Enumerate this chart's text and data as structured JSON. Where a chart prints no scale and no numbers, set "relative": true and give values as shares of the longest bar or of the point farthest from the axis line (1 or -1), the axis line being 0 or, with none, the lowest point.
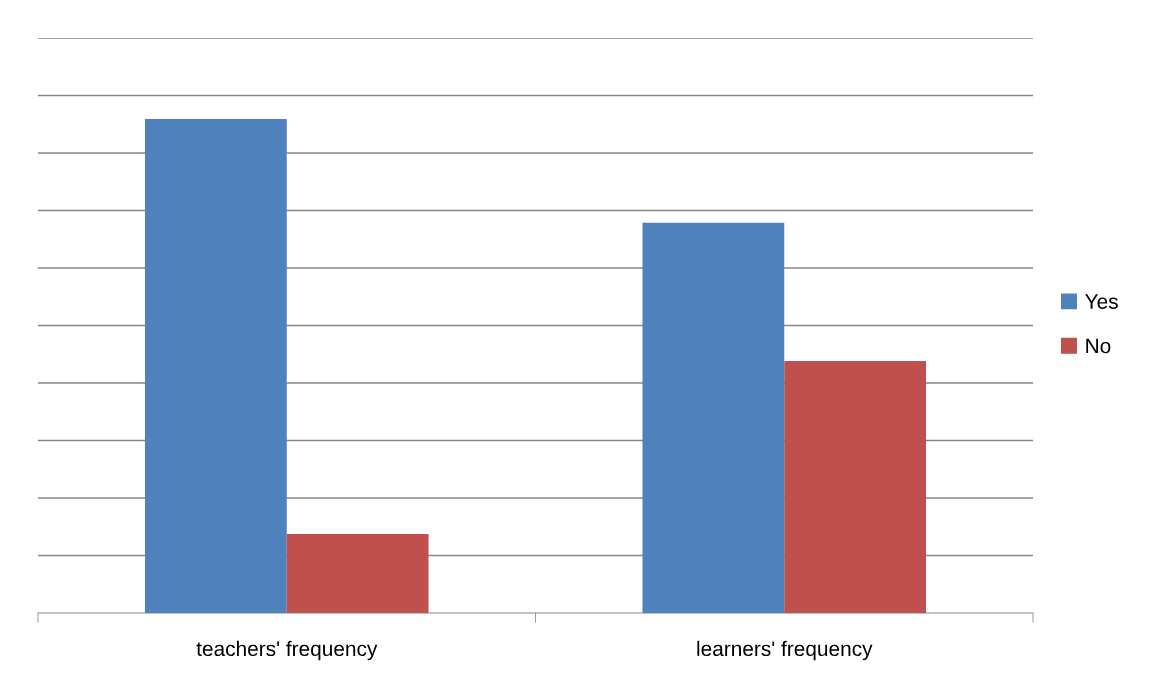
{
  "chart_data": {
    "type": "bar",
    "relative": true,
    "categories": [
      "teachers' frequency",
      "learners' frequency"
    ],
    "series": [
      {
        "name": "Yes",
        "color": "#4f81bd",
        "values": [
          1,
          0.79
        ]
      },
      {
        "name": "No",
        "color": "#c0504d",
        "values": [
          0.16,
          0.51
        ]
      }
    ],
    "grid": "y",
    "legend": "right"
  }
}
